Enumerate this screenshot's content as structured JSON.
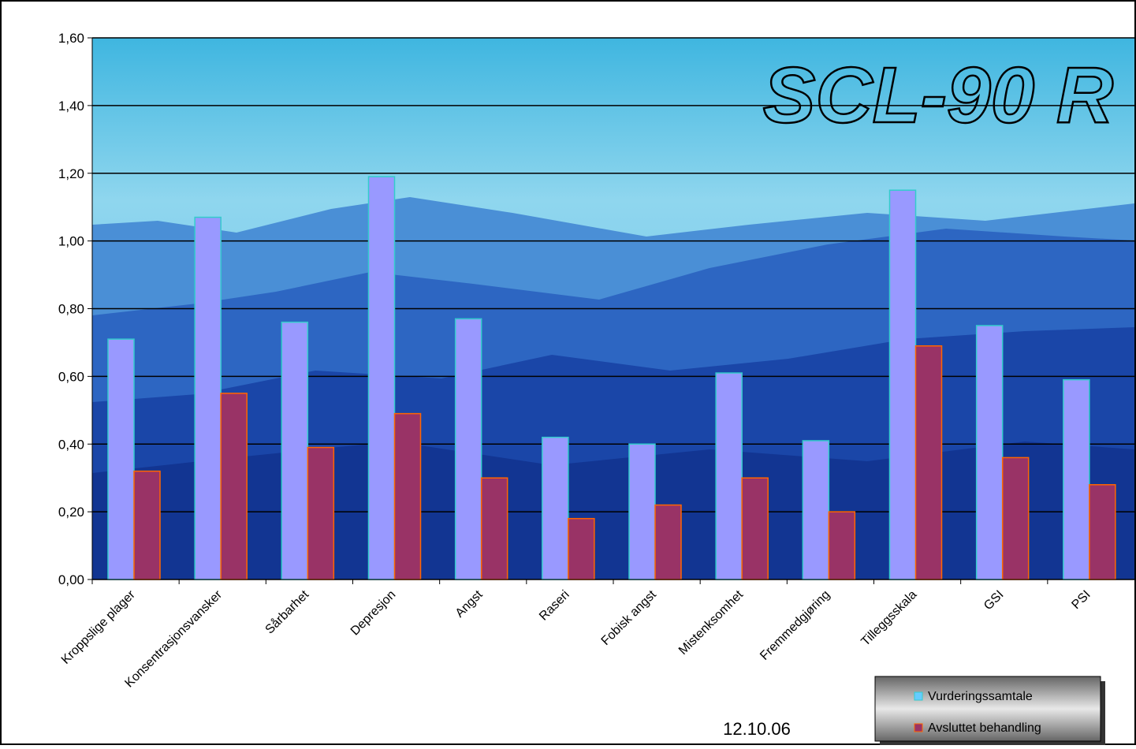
{
  "chart_data": {
    "type": "bar",
    "title": "SCL-90 R",
    "annotation": "12.10.06",
    "categories": [
      "Kroppslige plager",
      "Konsentrasjonsvansker",
      "Sårbarhet",
      "Depresjon",
      "Angst",
      "Raseri",
      "Fobisk angst",
      "Mistenksomhet",
      "Fremmedgjøring",
      "Tilleggsskala",
      "GSI",
      "PSI"
    ],
    "series": [
      {
        "name": "Vurderingssamtale",
        "color": "#9999ff",
        "edge": "#33cccc",
        "values": [
          0.71,
          1.07,
          0.76,
          1.19,
          0.77,
          0.42,
          0.4,
          0.61,
          0.41,
          1.15,
          0.75,
          0.59
        ]
      },
      {
        "name": "Avsluttet behandling",
        "color": "#993366",
        "edge": "#ff6600",
        "values": [
          0.32,
          0.55,
          0.39,
          0.49,
          0.3,
          0.18,
          0.22,
          0.3,
          0.2,
          0.69,
          0.36,
          0.28
        ]
      }
    ],
    "ylim": [
      0,
      1.6
    ],
    "yticks": [
      {
        "value": 0,
        "label": "0,00"
      },
      {
        "value": 0.2,
        "label": "0,20"
      },
      {
        "value": 0.4,
        "label": "0,40"
      },
      {
        "value": 0.6,
        "label": "0,60"
      },
      {
        "value": 0.8,
        "label": "0,80"
      },
      {
        "value": 1.0,
        "label": "1,00"
      },
      {
        "value": 1.2,
        "label": "1,20"
      },
      {
        "value": 1.4,
        "label": "1,40"
      },
      {
        "value": 1.6,
        "label": "1,60"
      }
    ],
    "grid": true,
    "legend": "bottom-right"
  }
}
